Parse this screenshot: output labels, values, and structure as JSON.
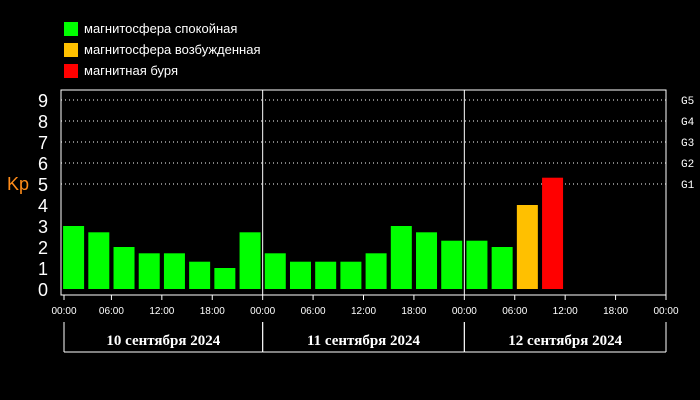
{
  "legend": [
    {
      "label": "магнитосфера спокойная",
      "color": "#00ff00"
    },
    {
      "label": "магнитосфера возбужденная",
      "color": "#ffc000"
    },
    {
      "label": "магнитная буря",
      "color": "#ff0000"
    }
  ],
  "chart_data": {
    "type": "bar",
    "ylabel": "Kp",
    "ylim": [
      0,
      9
    ],
    "y_ticks": [
      0,
      1,
      2,
      3,
      4,
      5,
      6,
      7,
      8,
      9
    ],
    "right_ticks": [
      {
        "label": "G1",
        "kp": 5
      },
      {
        "label": "G2",
        "kp": 6
      },
      {
        "label": "G3",
        "kp": 7
      },
      {
        "label": "G4",
        "kp": 8
      },
      {
        "label": "G5",
        "kp": 9
      }
    ],
    "x_ticks": [
      "00:00",
      "06:00",
      "12:00",
      "18:00",
      "00:00",
      "06:00",
      "12:00",
      "18:00",
      "00:00",
      "06:00",
      "12:00",
      "18:00",
      "00:00"
    ],
    "days": [
      "10 сентября 2024",
      "11 сентября 2024",
      "12 сентября 2024"
    ],
    "thresholds": {
      "active": 4,
      "storm": 5
    },
    "colors": {
      "quiet": "#00ff00",
      "active": "#ffc000",
      "storm": "#ff0000",
      "axis_label": "#ff8c1a"
    },
    "values": [
      3.0,
      2.7,
      2.0,
      1.7,
      1.7,
      1.3,
      1.0,
      2.7,
      1.7,
      1.3,
      1.3,
      1.3,
      1.7,
      3.0,
      2.7,
      2.3,
      2.3,
      2.0,
      4.0,
      5.3
    ]
  }
}
